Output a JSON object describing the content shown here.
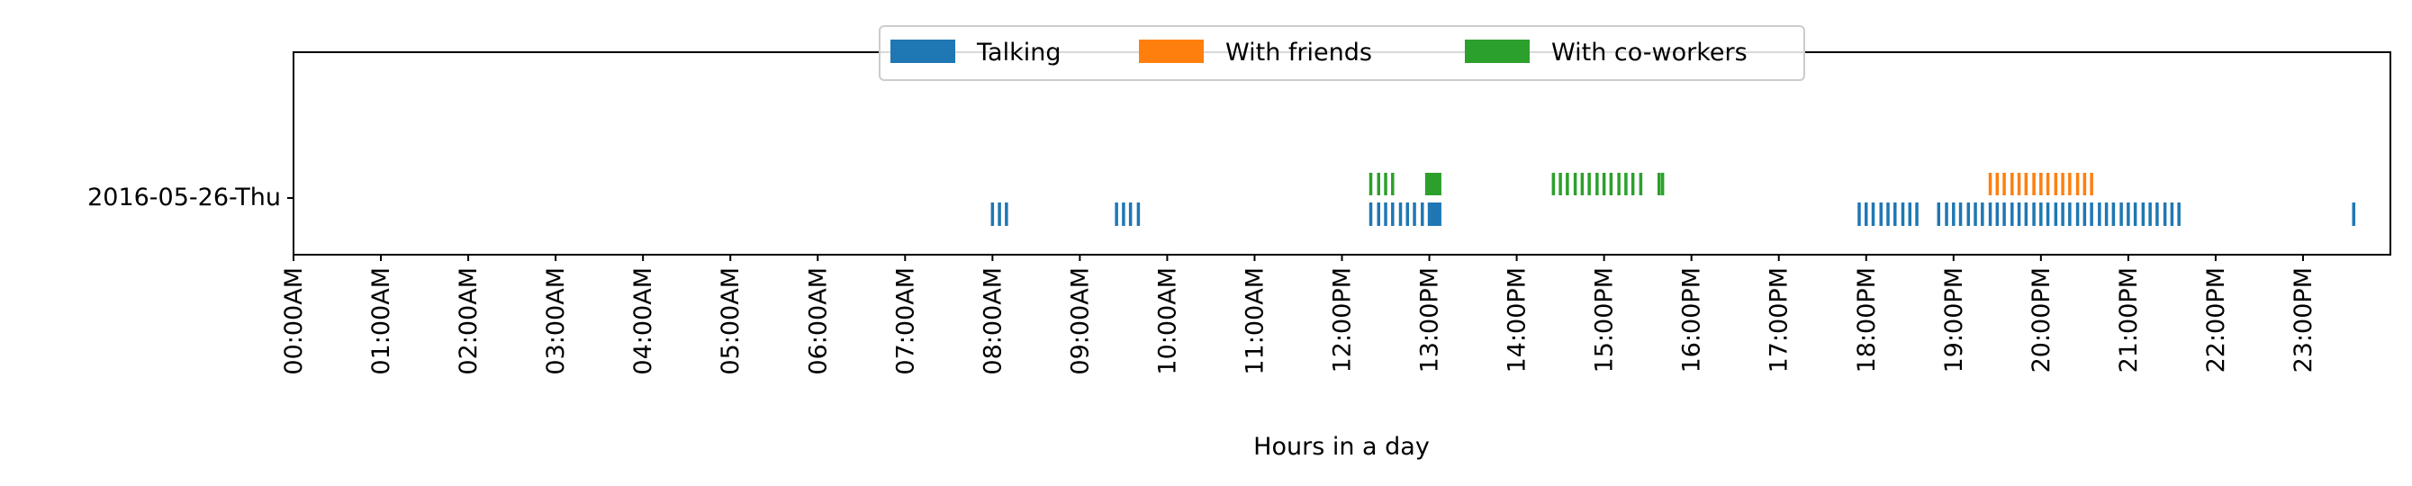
{
  "chart_data": {
    "type": "timeline",
    "xlabel": "Hours in a day",
    "ylabel": "",
    "title": "",
    "xlim": [
      0,
      24
    ],
    "x_ticks": [
      0,
      1,
      2,
      3,
      4,
      5,
      6,
      7,
      8,
      9,
      10,
      11,
      12,
      13,
      14,
      15,
      16,
      17,
      18,
      19,
      20,
      21,
      22,
      23
    ],
    "x_tick_labels": [
      "00:00AM",
      "01:00AM",
      "02:00AM",
      "03:00AM",
      "04:00AM",
      "05:00AM",
      "06:00AM",
      "07:00AM",
      "08:00AM",
      "09:00AM",
      "10:00AM",
      "11:00AM",
      "12:00PM",
      "13:00PM",
      "14:00PM",
      "15:00PM",
      "16:00PM",
      "17:00PM",
      "18:00PM",
      "19:00PM",
      "20:00PM",
      "21:00PM",
      "22:00PM",
      "23:00PM"
    ],
    "y_categories": [
      "2016-05-26-Thu"
    ],
    "legend_position": "top-center",
    "grid": false,
    "series": [
      {
        "name": "Talking",
        "color": "#1f77b4",
        "level": "lower",
        "times": [
          8.0,
          8.08,
          8.16,
          9.42,
          9.5,
          9.58,
          9.67,
          12.33,
          12.42,
          12.5,
          12.58,
          12.67,
          12.75,
          12.83,
          12.92,
          13.0,
          13.03,
          13.06,
          13.09,
          13.12,
          17.92,
          18.0,
          18.08,
          18.17,
          18.25,
          18.33,
          18.42,
          18.5,
          18.58,
          18.83,
          18.92,
          19.0,
          19.08,
          19.17,
          19.25,
          19.33,
          19.42,
          19.5,
          19.58,
          19.67,
          19.75,
          19.83,
          19.92,
          20.0,
          20.08,
          20.17,
          20.25,
          20.33,
          20.42,
          20.5,
          20.58,
          20.67,
          20.75,
          20.83,
          20.92,
          21.0,
          21.08,
          21.17,
          21.25,
          21.33,
          21.42,
          21.5,
          21.58,
          23.58
        ]
      },
      {
        "name": "With friends",
        "color": "#ff7f0e",
        "level": "upper",
        "times": [
          19.42,
          19.5,
          19.58,
          19.67,
          19.75,
          19.83,
          19.92,
          20.0,
          20.08,
          20.17,
          20.25,
          20.33,
          20.42,
          20.5,
          20.58
        ]
      },
      {
        "name": "With co-workers",
        "color": "#2ca02c",
        "level": "upper",
        "times": [
          12.33,
          12.42,
          12.5,
          12.58,
          12.97,
          13.0,
          13.03,
          13.06,
          13.09,
          13.12,
          14.42,
          14.5,
          14.58,
          14.67,
          14.75,
          14.83,
          14.92,
          15.0,
          15.08,
          15.17,
          15.25,
          15.33,
          15.42,
          15.63,
          15.67
        ]
      }
    ]
  }
}
